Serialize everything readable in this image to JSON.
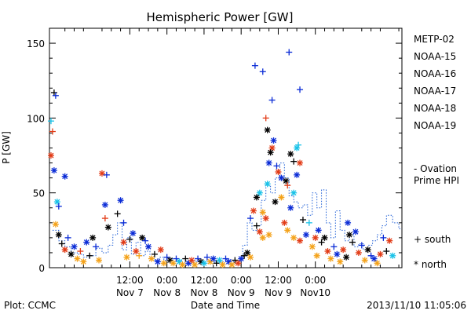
{
  "chart_data": {
    "type": "scatter",
    "title": "Hemispheric Power [GW]",
    "ylabel": "P [GW]",
    "xlabel": "Date and Time",
    "ylim": [
      0,
      160
    ],
    "yticks": [
      0,
      50,
      100,
      150
    ],
    "xlim": [
      -14,
      100
    ],
    "x_units": "hours since 2013-11-07 00:00 UT",
    "xticks": [
      {
        "x": 12,
        "line1": "12:00",
        "line2": "Nov 7"
      },
      {
        "x": 24,
        "line1": "0:00",
        "line2": "Nov 8"
      },
      {
        "x": 36,
        "line1": "12:00",
        "line2": "Nov 8"
      },
      {
        "x": 48,
        "line1": "0:00",
        "line2": "Nov 9"
      },
      {
        "x": 60,
        "line1": "12:00",
        "line2": "Nov 9"
      },
      {
        "x": 72,
        "line1": "0:00",
        "line2": "Nov10"
      }
    ],
    "legend": [
      {
        "name": "METP-02",
        "color": "#000000"
      },
      {
        "name": "NOAA-15",
        "color": "#0a2bd6"
      },
      {
        "name": "NOAA-16",
        "color": "#19c2e8"
      },
      {
        "name": "NOAA-17",
        "color": "#13d48a"
      },
      {
        "name": "NOAA-18",
        "color": "#f4a21a"
      },
      {
        "name": "NOAA-19",
        "color": "#e23b16"
      }
    ],
    "ovation_label": [
      "- Ovation",
      "Prime HPI"
    ],
    "ovation_color": "#1f5fd6",
    "symbol_legend": [
      {
        "symbol": "+",
        "label": "south"
      },
      {
        "symbol": "*",
        "label": "north"
      }
    ],
    "ovation_series": [
      [
        -13,
        25
      ],
      [
        -11,
        18
      ],
      [
        -9,
        14
      ],
      [
        -7,
        10
      ],
      [
        -5,
        9
      ],
      [
        -3,
        7
      ],
      [
        -1,
        8
      ],
      [
        1,
        13
      ],
      [
        3,
        10
      ],
      [
        5,
        15
      ],
      [
        6.5,
        22
      ],
      [
        8,
        30
      ],
      [
        9.5,
        12
      ],
      [
        11,
        20
      ],
      [
        12.5,
        9
      ],
      [
        14,
        17
      ],
      [
        15.5,
        8
      ],
      [
        17,
        11
      ],
      [
        18.5,
        6
      ],
      [
        20,
        5
      ],
      [
        21.5,
        7
      ],
      [
        23,
        5
      ],
      [
        24.5,
        6
      ],
      [
        26,
        4
      ],
      [
        27.5,
        5
      ],
      [
        29,
        3
      ],
      [
        30.5,
        4
      ],
      [
        32,
        5
      ],
      [
        33.5,
        4
      ],
      [
        35,
        3
      ],
      [
        36.5,
        3
      ],
      [
        38,
        4
      ],
      [
        39.5,
        3
      ],
      [
        41,
        4
      ],
      [
        42.5,
        3
      ],
      [
        44,
        4
      ],
      [
        45.5,
        5
      ],
      [
        47,
        5
      ],
      [
        48.5,
        15
      ],
      [
        50,
        30
      ],
      [
        51.5,
        25
      ],
      [
        53,
        28
      ],
      [
        54.5,
        45
      ],
      [
        56,
        55
      ],
      [
        57.5,
        50
      ],
      [
        59,
        60
      ],
      [
        60.5,
        70
      ],
      [
        62,
        60
      ],
      [
        63.5,
        48
      ],
      [
        65,
        44
      ],
      [
        66.5,
        40
      ],
      [
        68,
        42
      ],
      [
        69.5,
        35
      ],
      [
        71,
        50
      ],
      [
        72.5,
        40
      ],
      [
        74,
        52
      ],
      [
        75.5,
        30
      ],
      [
        77,
        20
      ],
      [
        78.5,
        38
      ],
      [
        80,
        25
      ],
      [
        81.5,
        18
      ],
      [
        83,
        22
      ],
      [
        84.5,
        14
      ],
      [
        86,
        16
      ],
      [
        87.5,
        12
      ],
      [
        89,
        15
      ],
      [
        90.5,
        18
      ],
      [
        92,
        22
      ],
      [
        93.5,
        28
      ],
      [
        95,
        35
      ],
      [
        97,
        30
      ],
      [
        99,
        26
      ]
    ],
    "points": [
      {
        "x": -12.5,
        "y": 117,
        "sym": "+",
        "c": "#000000"
      },
      {
        "x": -12,
        "y": 115,
        "sym": "+",
        "c": "#0a2bd6"
      },
      {
        "x": -13.5,
        "y": 98,
        "sym": "+",
        "c": "#19c2e8"
      },
      {
        "x": -13,
        "y": 91,
        "sym": "+",
        "c": "#e23b16"
      },
      {
        "x": -13.5,
        "y": 75,
        "sym": "*",
        "c": "#e23b16"
      },
      {
        "x": -12.5,
        "y": 65,
        "sym": "*",
        "c": "#0a2bd6"
      },
      {
        "x": -9,
        "y": 61,
        "sym": "*",
        "c": "#0a2bd6"
      },
      {
        "x": -11.5,
        "y": 44,
        "sym": "*",
        "c": "#19c2e8"
      },
      {
        "x": -11,
        "y": 41,
        "sym": "+",
        "c": "#0a2bd6"
      },
      {
        "x": -12,
        "y": 29,
        "sym": "*",
        "c": "#f4a21a"
      },
      {
        "x": -11,
        "y": 22,
        "sym": "*",
        "c": "#000000"
      },
      {
        "x": -10,
        "y": 16,
        "sym": "+",
        "c": "#000000"
      },
      {
        "x": -9,
        "y": 12,
        "sym": "*",
        "c": "#e23b16"
      },
      {
        "x": -8,
        "y": 20,
        "sym": "+",
        "c": "#0a2bd6"
      },
      {
        "x": -7,
        "y": 9,
        "sym": "*",
        "c": "#000000"
      },
      {
        "x": -6,
        "y": 14,
        "sym": "*",
        "c": "#0a2bd6"
      },
      {
        "x": -5,
        "y": 6,
        "sym": "*",
        "c": "#f4a21a"
      },
      {
        "x": -4,
        "y": 11,
        "sym": "+",
        "c": "#e23b16"
      },
      {
        "x": -3,
        "y": 4,
        "sym": "*",
        "c": "#f4a21a"
      },
      {
        "x": -2,
        "y": 17,
        "sym": "*",
        "c": "#0a2bd6"
      },
      {
        "x": -1,
        "y": 8,
        "sym": "+",
        "c": "#000000"
      },
      {
        "x": 0,
        "y": 20,
        "sym": "*",
        "c": "#000000"
      },
      {
        "x": 1,
        "y": 14,
        "sym": "+",
        "c": "#0a2bd6"
      },
      {
        "x": 2,
        "y": 5,
        "sym": "*",
        "c": "#f4a21a"
      },
      {
        "x": 3,
        "y": 63,
        "sym": "*",
        "c": "#e23b16"
      },
      {
        "x": 4.5,
        "y": 62,
        "sym": "+",
        "c": "#0a2bd6"
      },
      {
        "x": 4,
        "y": 42,
        "sym": "*",
        "c": "#0a2bd6"
      },
      {
        "x": 4,
        "y": 33,
        "sym": "+",
        "c": "#e23b16"
      },
      {
        "x": 5,
        "y": 27,
        "sym": "*",
        "c": "#000000"
      },
      {
        "x": 8,
        "y": 36,
        "sym": "+",
        "c": "#000000"
      },
      {
        "x": 9,
        "y": 45,
        "sym": "*",
        "c": "#0a2bd6"
      },
      {
        "x": 10,
        "y": 30,
        "sym": "+",
        "c": "#0a2bd6"
      },
      {
        "x": 10,
        "y": 17,
        "sym": "*",
        "c": "#e23b16"
      },
      {
        "x": 11,
        "y": 7,
        "sym": "*",
        "c": "#f4a21a"
      },
      {
        "x": 12,
        "y": 19,
        "sym": "+",
        "c": "#000000"
      },
      {
        "x": 13,
        "y": 23,
        "sym": "*",
        "c": "#0a2bd6"
      },
      {
        "x": 14,
        "y": 11,
        "sym": "*",
        "c": "#e23b16"
      },
      {
        "x": 15,
        "y": 8,
        "sym": "+",
        "c": "#f4a21a"
      },
      {
        "x": 16,
        "y": 20,
        "sym": "*",
        "c": "#000000"
      },
      {
        "x": 17,
        "y": 18,
        "sym": "+",
        "c": "#0a2bd6"
      },
      {
        "x": 18,
        "y": 14,
        "sym": "*",
        "c": "#0a2bd6"
      },
      {
        "x": 19,
        "y": 6,
        "sym": "*",
        "c": "#f4a21a"
      },
      {
        "x": 20,
        "y": 9,
        "sym": "+",
        "c": "#000000"
      },
      {
        "x": 21,
        "y": 4,
        "sym": "*",
        "c": "#0a2bd6"
      },
      {
        "x": 22,
        "y": 12,
        "sym": "*",
        "c": "#e23b16"
      },
      {
        "x": 23,
        "y": 3,
        "sym": "*",
        "c": "#f4a21a"
      },
      {
        "x": 24,
        "y": 7,
        "sym": "+",
        "c": "#0a2bd6"
      },
      {
        "x": 25,
        "y": 5,
        "sym": "*",
        "c": "#000000"
      },
      {
        "x": 26,
        "y": 3,
        "sym": "*",
        "c": "#f4a21a"
      },
      {
        "x": 27,
        "y": 6,
        "sym": "+",
        "c": "#0a2bd6"
      },
      {
        "x": 28,
        "y": 4,
        "sym": "*",
        "c": "#19c2e8"
      },
      {
        "x": 29,
        "y": 2,
        "sym": "*",
        "c": "#f4a21a"
      },
      {
        "x": 30,
        "y": 6,
        "sym": "+",
        "c": "#000000"
      },
      {
        "x": 31,
        "y": 3,
        "sym": "*",
        "c": "#0a2bd6"
      },
      {
        "x": 32,
        "y": 5,
        "sym": "*",
        "c": "#e23b16"
      },
      {
        "x": 33,
        "y": 2,
        "sym": "*",
        "c": "#f4a21a"
      },
      {
        "x": 34,
        "y": 6,
        "sym": "+",
        "c": "#0a2bd6"
      },
      {
        "x": 35,
        "y": 4,
        "sym": "*",
        "c": "#000000"
      },
      {
        "x": 36,
        "y": 3,
        "sym": "*",
        "c": "#19c2e8"
      },
      {
        "x": 37,
        "y": 7,
        "sym": "+",
        "c": "#0a2bd6"
      },
      {
        "x": 38,
        "y": 4,
        "sym": "*",
        "c": "#f4a21a"
      },
      {
        "x": 39,
        "y": 6,
        "sym": "*",
        "c": "#0a2bd6"
      },
      {
        "x": 40,
        "y": 3,
        "sym": "+",
        "c": "#000000"
      },
      {
        "x": 41,
        "y": 5,
        "sym": "*",
        "c": "#19c2e8"
      },
      {
        "x": 42,
        "y": 2,
        "sym": "*",
        "c": "#f4a21a"
      },
      {
        "x": 43,
        "y": 6,
        "sym": "+",
        "c": "#0a2bd6"
      },
      {
        "x": 44,
        "y": 4,
        "sym": "*",
        "c": "#0a2bd6"
      },
      {
        "x": 45,
        "y": 2,
        "sym": "*",
        "c": "#f4a21a"
      },
      {
        "x": 46,
        "y": 5,
        "sym": "+",
        "c": "#000000"
      },
      {
        "x": 47,
        "y": 3,
        "sym": "*",
        "c": "#e23b16"
      },
      {
        "x": 48,
        "y": 6,
        "sym": "*",
        "c": "#0a2bd6"
      },
      {
        "x": 49,
        "y": 8,
        "sym": "+",
        "c": "#000000"
      },
      {
        "x": 50,
        "y": 10,
        "sym": "*",
        "c": "#000000"
      },
      {
        "x": 51,
        "y": 7,
        "sym": "*",
        "c": "#f4a21a"
      },
      {
        "x": 52.5,
        "y": 135,
        "sym": "+",
        "c": "#0a2bd6"
      },
      {
        "x": 55,
        "y": 131,
        "sym": "+",
        "c": "#0a2bd6"
      },
      {
        "x": 58,
        "y": 112,
        "sym": "+",
        "c": "#0a2bd6"
      },
      {
        "x": 56,
        "y": 100,
        "sym": "+",
        "c": "#e23b16"
      },
      {
        "x": 56.5,
        "y": 92,
        "sym": "*",
        "c": "#000000"
      },
      {
        "x": 58.5,
        "y": 85,
        "sym": "*",
        "c": "#0a2bd6"
      },
      {
        "x": 58,
        "y": 80,
        "sym": "*",
        "c": "#e23b16"
      },
      {
        "x": 57.5,
        "y": 77,
        "sym": "*",
        "c": "#000000"
      },
      {
        "x": 57,
        "y": 70,
        "sym": "*",
        "c": "#0a2bd6"
      },
      {
        "x": 59.5,
        "y": 68,
        "sym": "+",
        "c": "#0a2bd6"
      },
      {
        "x": 60,
        "y": 64,
        "sym": "*",
        "c": "#e23b16"
      },
      {
        "x": 61,
        "y": 60,
        "sym": "*",
        "c": "#0a2bd6"
      },
      {
        "x": 56.5,
        "y": 56,
        "sym": "*",
        "c": "#19c2e8"
      },
      {
        "x": 54,
        "y": 50,
        "sym": "*",
        "c": "#19c2e8"
      },
      {
        "x": 53,
        "y": 47,
        "sym": "*",
        "c": "#000000"
      },
      {
        "x": 52,
        "y": 38,
        "sym": "*",
        "c": "#e23b16"
      },
      {
        "x": 51,
        "y": 33,
        "sym": "+",
        "c": "#0a2bd6"
      },
      {
        "x": 53,
        "y": 28,
        "sym": "+",
        "c": "#000000"
      },
      {
        "x": 54,
        "y": 24,
        "sym": "*",
        "c": "#e23b16"
      },
      {
        "x": 55,
        "y": 37,
        "sym": "*",
        "c": "#f4a21a"
      },
      {
        "x": 56,
        "y": 33,
        "sym": "*",
        "c": "#e23b16"
      },
      {
        "x": 55,
        "y": 20,
        "sym": "*",
        "c": "#f4a21a"
      },
      {
        "x": 57,
        "y": 22,
        "sym": "*",
        "c": "#f4a21a"
      },
      {
        "x": 59,
        "y": 44,
        "sym": "*",
        "c": "#000000"
      },
      {
        "x": 61,
        "y": 47,
        "sym": "*",
        "c": "#f4a21a"
      },
      {
        "x": 62,
        "y": 30,
        "sym": "*",
        "c": "#e23b16"
      },
      {
        "x": 63.5,
        "y": 144,
        "sym": "+",
        "c": "#0a2bd6"
      },
      {
        "x": 62.5,
        "y": 58,
        "sym": "*",
        "c": "#000000"
      },
      {
        "x": 63,
        "y": 55,
        "sym": "+",
        "c": "#e23b16"
      },
      {
        "x": 64,
        "y": 76,
        "sym": "*",
        "c": "#000000"
      },
      {
        "x": 65,
        "y": 71,
        "sym": "+",
        "c": "#000000"
      },
      {
        "x": 66,
        "y": 80,
        "sym": "*",
        "c": "#19c2e8"
      },
      {
        "x": 66.5,
        "y": 82,
        "sym": "+",
        "c": "#19c2e8"
      },
      {
        "x": 67,
        "y": 119,
        "sym": "+",
        "c": "#0a2bd6"
      },
      {
        "x": 67,
        "y": 70,
        "sym": "*",
        "c": "#e23b16"
      },
      {
        "x": 66,
        "y": 62,
        "sym": "*",
        "c": "#0a2bd6"
      },
      {
        "x": 65,
        "y": 50,
        "sym": "*",
        "c": "#19c2e8"
      },
      {
        "x": 64,
        "y": 40,
        "sym": "*",
        "c": "#0a2bd6"
      },
      {
        "x": 63,
        "y": 25,
        "sym": "*",
        "c": "#f4a21a"
      },
      {
        "x": 65,
        "y": 20,
        "sym": "*",
        "c": "#f4a21a"
      },
      {
        "x": 67,
        "y": 18,
        "sym": "*",
        "c": "#e23b16"
      },
      {
        "x": 68,
        "y": 32,
        "sym": "+",
        "c": "#000000"
      },
      {
        "x": 69,
        "y": 22,
        "sym": "*",
        "c": "#0a2bd6"
      },
      {
        "x": 70,
        "y": 30,
        "sym": "+",
        "c": "#19c2e8"
      },
      {
        "x": 71,
        "y": 14,
        "sym": "*",
        "c": "#f4a21a"
      },
      {
        "x": 72,
        "y": 20,
        "sym": "*",
        "c": "#e23b16"
      },
      {
        "x": 72.5,
        "y": 8,
        "sym": "*",
        "c": "#f4a21a"
      },
      {
        "x": 73,
        "y": 25,
        "sym": "*",
        "c": "#0a2bd6"
      },
      {
        "x": 74,
        "y": 17,
        "sym": "+",
        "c": "#000000"
      },
      {
        "x": 75,
        "y": 20,
        "sym": "*",
        "c": "#000000"
      },
      {
        "x": 76,
        "y": 11,
        "sym": "*",
        "c": "#e23b16"
      },
      {
        "x": 77,
        "y": 6,
        "sym": "*",
        "c": "#f4a21a"
      },
      {
        "x": 78,
        "y": 14,
        "sym": "+",
        "c": "#0a2bd6"
      },
      {
        "x": 79,
        "y": 9,
        "sym": "*",
        "c": "#0a2bd6"
      },
      {
        "x": 80,
        "y": 4,
        "sym": "*",
        "c": "#f4a21a"
      },
      {
        "x": 81,
        "y": 12,
        "sym": "*",
        "c": "#e23b16"
      },
      {
        "x": 82,
        "y": 7,
        "sym": "*",
        "c": "#000000"
      },
      {
        "x": 82.5,
        "y": 30,
        "sym": "*",
        "c": "#0a2bd6"
      },
      {
        "x": 83,
        "y": 22,
        "sym": "*",
        "c": "#000000"
      },
      {
        "x": 84,
        "y": 17,
        "sym": "+",
        "c": "#000000"
      },
      {
        "x": 85,
        "y": 24,
        "sym": "*",
        "c": "#0a2bd6"
      },
      {
        "x": 86,
        "y": 10,
        "sym": "*",
        "c": "#e23b16"
      },
      {
        "x": 87,
        "y": 15,
        "sym": "+",
        "c": "#0a2bd6"
      },
      {
        "x": 88,
        "y": 5,
        "sym": "*",
        "c": "#f4a21a"
      },
      {
        "x": 89,
        "y": 12,
        "sym": "*",
        "c": "#000000"
      },
      {
        "x": 90,
        "y": 8,
        "sym": "+",
        "c": "#0a2bd6"
      },
      {
        "x": 91,
        "y": 6,
        "sym": "*",
        "c": "#0a2bd6"
      },
      {
        "x": 92,
        "y": 3,
        "sym": "*",
        "c": "#f4a21a"
      },
      {
        "x": 93,
        "y": 9,
        "sym": "*",
        "c": "#e23b16"
      },
      {
        "x": 94,
        "y": 20,
        "sym": "+",
        "c": "#0a2bd6"
      },
      {
        "x": 95,
        "y": 11,
        "sym": "+",
        "c": "#000000"
      },
      {
        "x": 96,
        "y": 18,
        "sym": "*",
        "c": "#e23b16"
      },
      {
        "x": 97,
        "y": 8,
        "sym": "*",
        "c": "#19c2e8"
      }
    ]
  },
  "footer": {
    "left": "Plot: CCMC",
    "right": "2013/11/10 11:05:06"
  }
}
